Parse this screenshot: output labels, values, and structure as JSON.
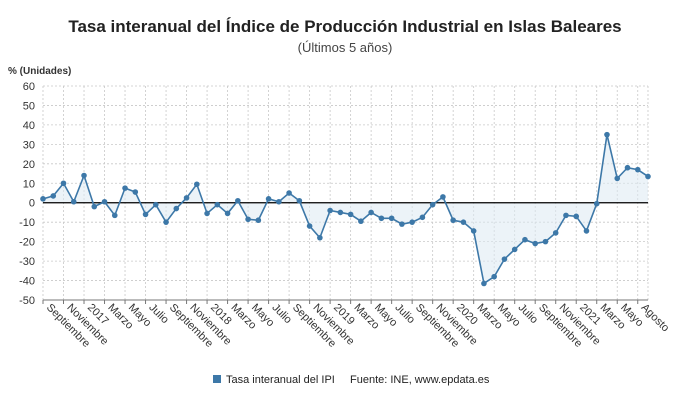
{
  "chart_data": {
    "type": "line",
    "title": "Tasa interanual del Índice de Producción Industrial en Islas Baleares",
    "subtitle": "(Últimos 5 años)",
    "ylabel": "% (Unidades)",
    "ylim": [
      -50,
      60
    ],
    "yticks": [
      60,
      50,
      40,
      30,
      20,
      10,
      0,
      -10,
      -20,
      -30,
      -40,
      -50
    ],
    "grid": true,
    "series": [
      {
        "name": "Tasa interanual del IPI",
        "color": "#3d78a8",
        "values": [
          2,
          3.5,
          10,
          0.5,
          14,
          -2,
          0.5,
          -6.5,
          7.5,
          5.5,
          -6,
          -1,
          -10,
          -3,
          2.5,
          9.5,
          -5.5,
          -1,
          -5.5,
          1,
          -8.5,
          -9,
          2,
          0.5,
          5,
          1,
          -12,
          -18,
          -4,
          -5,
          -6,
          -9.5,
          -5,
          -8,
          -8,
          -11,
          -10,
          -7.5,
          -1,
          3,
          -9,
          -10,
          -14.5,
          -41.5,
          -38,
          -29,
          -24,
          -19,
          -21,
          -20,
          -15.5,
          -6.5,
          -7,
          -14.5,
          -0.5,
          35,
          12.5,
          18,
          17,
          13.5
        ]
      }
    ],
    "x_labels": [
      "Septiembre",
      "Noviembre",
      "2017",
      "Marzo",
      "Mayo",
      "Julio",
      "Septiembre",
      "Noviembre",
      "2018",
      "Marzo",
      "Mayo",
      "Julio",
      "Septiembre",
      "Noviembre",
      "2019",
      "Marzo",
      "Mayo",
      "Julio",
      "Septiembre",
      "Noviembre",
      "2020",
      "Marzo",
      "Mayo",
      "Julio",
      "Septiembre",
      "Noviembre",
      "2021",
      "Marzo",
      "Mayo",
      "Agosto"
    ],
    "legend": {
      "label": "Tasa interanual del IPI",
      "placement": "bottom-center"
    },
    "source": "Fuente: INE, www.epdata.es",
    "colors": {
      "line": "#3d78a8",
      "marker": "#3d78a8",
      "fill": "#dde9f3",
      "grid": "#c8c8c8",
      "zero_line": "#000000"
    }
  }
}
